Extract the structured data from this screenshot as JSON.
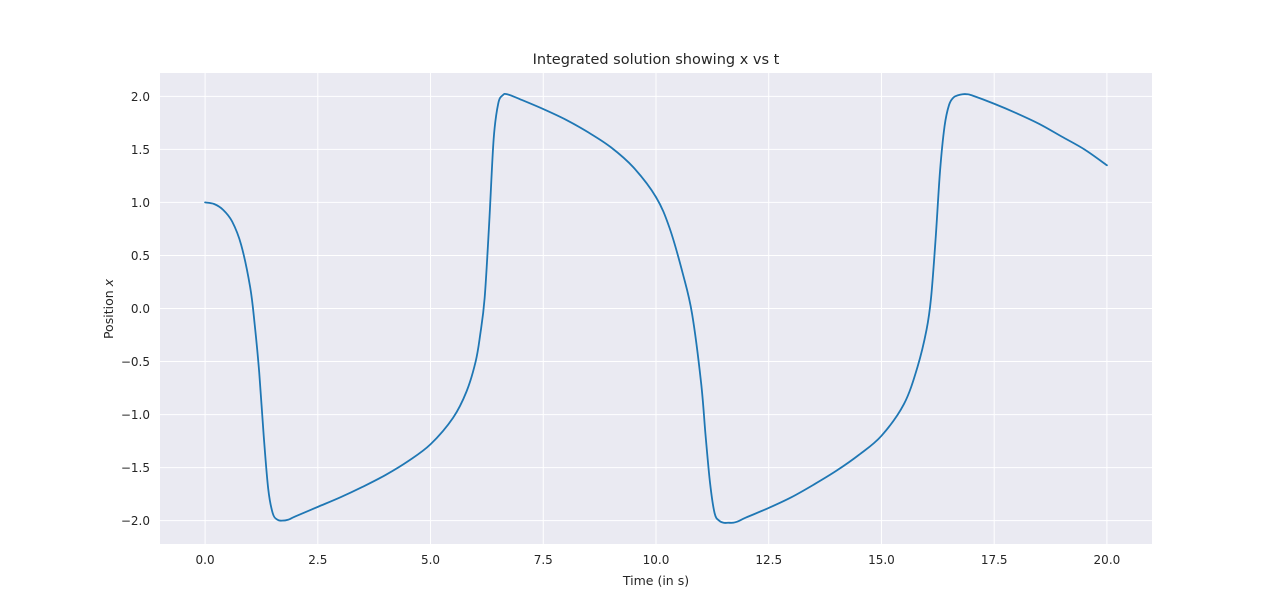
{
  "chart_data": {
    "type": "line",
    "title": "Integrated solution showing x vs t",
    "xlabel": "Time (in s)",
    "ylabel": "Position x",
    "ylabel_prefix": "Position ",
    "ylabel_var": "x",
    "xlim": [
      -1,
      21
    ],
    "ylim": [
      -2.22,
      2.22
    ],
    "xticks": [
      0.0,
      2.5,
      5.0,
      7.5,
      10.0,
      12.5,
      15.0,
      17.5,
      20.0
    ],
    "xtick_labels": [
      "0.0",
      "2.5",
      "5.0",
      "7.5",
      "10.0",
      "12.5",
      "15.0",
      "17.5",
      "20.0"
    ],
    "yticks": [
      -2.0,
      -1.5,
      -1.0,
      -0.5,
      0.0,
      0.5,
      1.0,
      1.5,
      2.0
    ],
    "ytick_labels": [
      "−2.0",
      "−1.5",
      "−1.0",
      "−0.5",
      "0.0",
      "0.5",
      "1.0",
      "1.5",
      "2.0"
    ],
    "grid": true,
    "legend": "none",
    "colors": {
      "background": "#eaeaf2",
      "grid": "#ffffff",
      "line": "#1f77b4"
    },
    "series": [
      {
        "x": [
          0.0,
          0.2,
          0.4,
          0.6,
          0.8,
          1.0,
          1.1,
          1.2,
          1.3,
          1.4,
          1.5,
          1.6,
          1.7,
          1.85,
          2.0,
          2.5,
          3.0,
          3.5,
          4.0,
          4.5,
          5.0,
          5.5,
          5.8,
          6.0,
          6.1,
          6.2,
          6.3,
          6.4,
          6.5,
          6.6,
          6.7,
          7.0,
          7.5,
          8.0,
          8.5,
          9.0,
          9.5,
          10.0,
          10.3,
          10.6,
          10.8,
          11.0,
          11.1,
          11.2,
          11.3,
          11.4,
          11.5,
          11.6,
          11.7,
          11.8,
          12.0,
          12.5,
          13.0,
          13.5,
          14.0,
          14.5,
          15.0,
          15.5,
          15.8,
          16.0,
          16.1,
          16.2,
          16.3,
          16.4,
          16.5,
          16.6,
          16.7,
          16.8,
          16.9,
          17.0,
          17.5,
          18.0,
          18.5,
          19.0,
          19.5,
          20.0
        ],
        "y": [
          1.0,
          0.985,
          0.93,
          0.82,
          0.6,
          0.2,
          -0.15,
          -0.6,
          -1.2,
          -1.7,
          -1.93,
          -1.99,
          -2.0,
          -1.99,
          -1.96,
          -1.87,
          -1.78,
          -1.68,
          -1.57,
          -1.44,
          -1.28,
          -1.03,
          -0.78,
          -0.5,
          -0.25,
          0.1,
          0.8,
          1.6,
          1.93,
          2.01,
          2.02,
          1.97,
          1.88,
          1.78,
          1.66,
          1.52,
          1.33,
          1.05,
          0.76,
          0.32,
          -0.05,
          -0.7,
          -1.2,
          -1.65,
          -1.93,
          -2.0,
          -2.02,
          -2.02,
          -2.02,
          -2.01,
          -1.97,
          -1.88,
          -1.78,
          -1.66,
          -1.53,
          -1.38,
          -1.2,
          -0.9,
          -0.55,
          -0.2,
          0.1,
          0.65,
          1.3,
          1.72,
          1.92,
          1.99,
          2.01,
          2.02,
          2.02,
          2.01,
          1.93,
          1.84,
          1.74,
          1.62,
          1.5,
          1.35
        ]
      }
    ]
  }
}
